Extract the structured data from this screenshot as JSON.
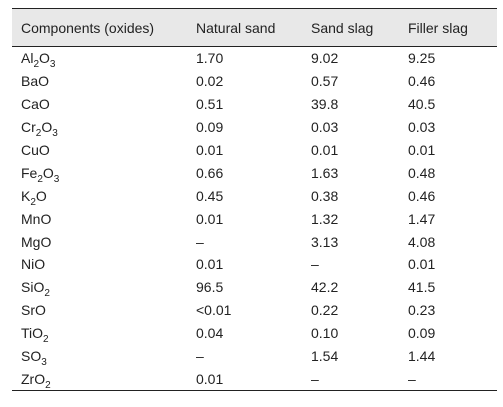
{
  "table": {
    "headers": [
      "Components (oxides)",
      "Natural sand",
      "Sand slag",
      "Filler slag"
    ],
    "rows": [
      {
        "component": "Al2O3",
        "parts": [
          [
            "Al",
            ""
          ],
          [
            "2",
            "sub"
          ],
          [
            "O",
            ""
          ],
          [
            "3",
            "sub"
          ]
        ],
        "values": [
          "1.70",
          "9.02",
          "9.25"
        ]
      },
      {
        "component": "BaO",
        "parts": [
          [
            "BaO",
            ""
          ]
        ],
        "values": [
          "0.02",
          "0.57",
          "0.46"
        ]
      },
      {
        "component": "CaO",
        "parts": [
          [
            "CaO",
            ""
          ]
        ],
        "values": [
          "0.51",
          "39.8",
          "40.5"
        ]
      },
      {
        "component": "Cr2O3",
        "parts": [
          [
            "Cr",
            ""
          ],
          [
            "2",
            "sub"
          ],
          [
            "O",
            ""
          ],
          [
            "3",
            "sub"
          ]
        ],
        "values": [
          "0.09",
          "0.03",
          "0.03"
        ]
      },
      {
        "component": "CuO",
        "parts": [
          [
            "CuO",
            ""
          ]
        ],
        "values": [
          "0.01",
          "0.01",
          "0.01"
        ]
      },
      {
        "component": "Fe2O3",
        "parts": [
          [
            "Fe",
            ""
          ],
          [
            "2",
            "sub"
          ],
          [
            "O",
            ""
          ],
          [
            "3",
            "sub"
          ]
        ],
        "values": [
          "0.66",
          "1.63",
          "0.48"
        ]
      },
      {
        "component": "K2O",
        "parts": [
          [
            "K",
            ""
          ],
          [
            "2",
            "sub"
          ],
          [
            "O",
            ""
          ]
        ],
        "values": [
          "0.45",
          "0.38",
          "0.46"
        ]
      },
      {
        "component": "MnO",
        "parts": [
          [
            "MnO",
            ""
          ]
        ],
        "values": [
          "0.01",
          "1.32",
          "1.47"
        ]
      },
      {
        "component": "MgO",
        "parts": [
          [
            "MgO",
            ""
          ]
        ],
        "values": [
          "–",
          "3.13",
          "4.08"
        ]
      },
      {
        "component": "NiO",
        "parts": [
          [
            "NiO",
            ""
          ]
        ],
        "values": [
          "0.01",
          "–",
          "0.01"
        ]
      },
      {
        "component": "SiO2",
        "parts": [
          [
            "SiO",
            ""
          ],
          [
            "2",
            "sub"
          ]
        ],
        "values": [
          "96.5",
          "42.2",
          "41.5"
        ]
      },
      {
        "component": "SrO",
        "parts": [
          [
            "SrO",
            ""
          ]
        ],
        "values": [
          "<0.01",
          "0.22",
          "0.23"
        ]
      },
      {
        "component": "TiO2",
        "parts": [
          [
            "TiO",
            ""
          ],
          [
            "2",
            "sub"
          ]
        ],
        "values": [
          "0.04",
          "0.10",
          "0.09"
        ]
      },
      {
        "component": "SO3",
        "parts": [
          [
            "SO",
            ""
          ],
          [
            "3",
            "sub"
          ]
        ],
        "values": [
          "–",
          "1.54",
          "1.44"
        ]
      },
      {
        "component": "ZrO2",
        "parts": [
          [
            "ZrO",
            ""
          ],
          [
            "2",
            "sub"
          ]
        ],
        "values": [
          "0.01",
          "–",
          "–"
        ]
      }
    ]
  }
}
